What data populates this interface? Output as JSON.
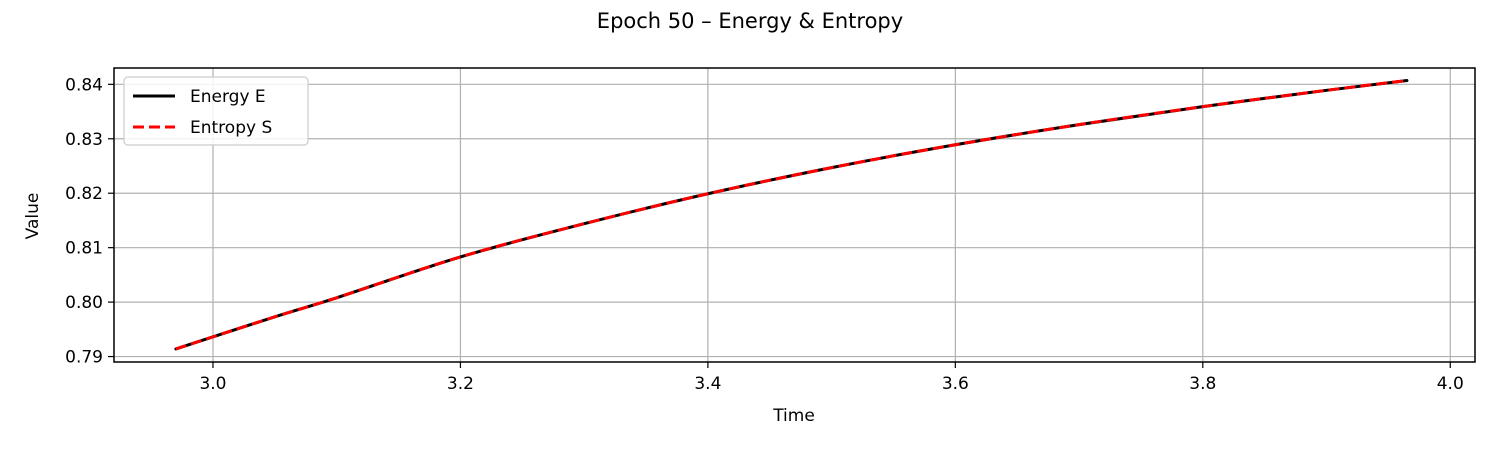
{
  "chart_data": {
    "type": "line",
    "title": "Epoch 50 – Energy & Entropy",
    "xlabel": "Time",
    "ylabel": "Value",
    "xlim": [
      2.92,
      4.02
    ],
    "ylim": [
      0.789,
      0.843
    ],
    "xticks": [
      3.0,
      3.2,
      3.4,
      3.6,
      3.8,
      4.0
    ],
    "xtick_labels": [
      "3.0",
      "3.2",
      "3.4",
      "3.6",
      "3.8",
      "4.0"
    ],
    "yticks": [
      0.79,
      0.8,
      0.81,
      0.82,
      0.83,
      0.84
    ],
    "ytick_labels": [
      "0.79",
      "0.80",
      "0.81",
      "0.82",
      "0.83",
      "0.84"
    ],
    "grid": true,
    "legend_position": "upper-left",
    "x": [
      2.97,
      3.05,
      3.1,
      3.2,
      3.3,
      3.4,
      3.5,
      3.6,
      3.7,
      3.8,
      3.9,
      3.965
    ],
    "series": [
      {
        "name": "Energy E",
        "color": "#000000",
        "style": "solid",
        "values": [
          0.7914,
          0.7973,
          0.8008,
          0.8083,
          0.8144,
          0.8199,
          0.8247,
          0.8289,
          0.8326,
          0.8359,
          0.8389,
          0.8407
        ]
      },
      {
        "name": "Entropy S",
        "color": "#ff0000",
        "style": "dashed",
        "values": [
          0.7914,
          0.7973,
          0.8008,
          0.8083,
          0.8144,
          0.8199,
          0.8247,
          0.8289,
          0.8326,
          0.8359,
          0.8389,
          0.8407
        ]
      }
    ]
  }
}
